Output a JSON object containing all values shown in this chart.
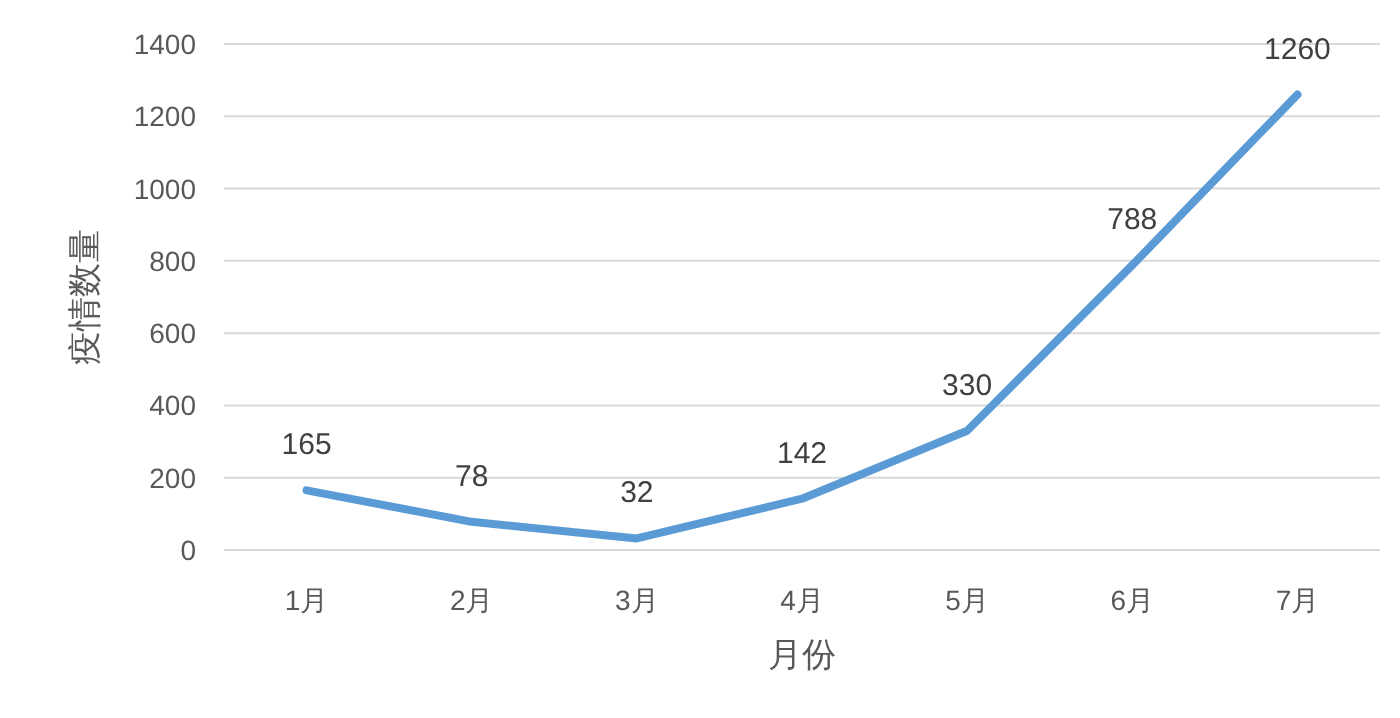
{
  "chart_data": {
    "type": "line",
    "xlabel": "月份",
    "ylabel": "疫情数量",
    "categories": [
      "1月",
      "2月",
      "3月",
      "4月",
      "5月",
      "6月",
      "7月"
    ],
    "series": [
      {
        "color": "#5b9bd5",
        "values": [
          165,
          78,
          32,
          142,
          330,
          788,
          1260
        ]
      }
    ],
    "data_labels": true,
    "ylim": [
      0,
      1400
    ],
    "yticks": [
      0,
      200,
      400,
      600,
      800,
      1000,
      1200,
      1400
    ],
    "grid": "y"
  }
}
